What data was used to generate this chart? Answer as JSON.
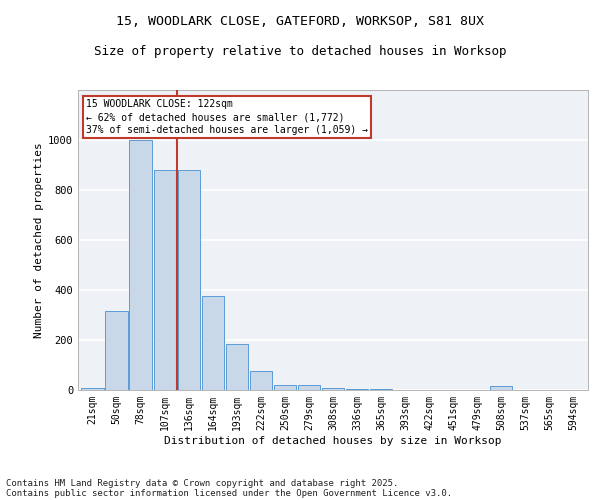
{
  "title_line1": "15, WOODLARK CLOSE, GATEFORD, WORKSOP, S81 8UX",
  "title_line2": "Size of property relative to detached houses in Worksop",
  "xlabel": "Distribution of detached houses by size in Worksop",
  "ylabel": "Number of detached properties",
  "categories": [
    "21sqm",
    "50sqm",
    "78sqm",
    "107sqm",
    "136sqm",
    "164sqm",
    "193sqm",
    "222sqm",
    "250sqm",
    "279sqm",
    "308sqm",
    "336sqm",
    "365sqm",
    "393sqm",
    "422sqm",
    "451sqm",
    "479sqm",
    "508sqm",
    "537sqm",
    "565sqm",
    "594sqm"
  ],
  "bar_heights": [
    10,
    315,
    1000,
    880,
    880,
    375,
    183,
    75,
    20,
    20,
    10,
    5,
    5,
    0,
    0,
    0,
    0,
    15,
    0,
    0,
    0
  ],
  "bar_color": "#c8d8e8",
  "bar_edge_color": "#5b9bd5",
  "background_color": "#eef2f7",
  "grid_color": "#ffffff",
  "vline_x_index": 3.5,
  "vline_color": "#c0392b",
  "annotation_box_text": "15 WOODLARK CLOSE: 122sqm\n← 62% of detached houses are smaller (1,772)\n37% of semi-detached houses are larger (1,059) →",
  "annotation_box_color": "#c0392b",
  "ylim": [
    0,
    1200
  ],
  "yticks": [
    0,
    200,
    400,
    600,
    800,
    1000
  ],
  "footer_line1": "Contains HM Land Registry data © Crown copyright and database right 2025.",
  "footer_line2": "Contains public sector information licensed under the Open Government Licence v3.0.",
  "title_fontsize": 9.5,
  "subtitle_fontsize": 9,
  "axis_label_fontsize": 8,
  "tick_fontsize": 7,
  "footer_fontsize": 6.5,
  "ann_fontsize": 7
}
